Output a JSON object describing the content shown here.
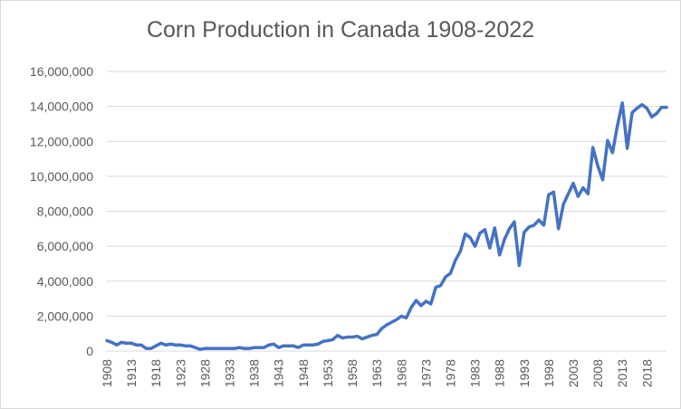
{
  "chart_data": {
    "type": "line",
    "title": "Corn Production in Canada 1908-2022",
    "xlabel": "",
    "ylabel": "",
    "ylim": [
      0,
      16000000
    ],
    "yticks": [
      "0",
      "2,000,000",
      "4,000,000",
      "6,000,000",
      "8,000,000",
      "10,000,000",
      "12,000,000",
      "14,000,000",
      "16,000,000"
    ],
    "xticks": [
      "1908",
      "1913",
      "1918",
      "1923",
      "1928",
      "1933",
      "1938",
      "1943",
      "1948",
      "1953",
      "1958",
      "1963",
      "1968",
      "1973",
      "1978",
      "1983",
      "1988",
      "1993",
      "1998",
      "2003",
      "2008",
      "2013",
      "2018"
    ],
    "grid": true,
    "legend": "none",
    "line_color": "#4472c4",
    "x": [
      1908,
      1909,
      1910,
      1911,
      1912,
      1913,
      1914,
      1915,
      1916,
      1917,
      1918,
      1919,
      1920,
      1921,
      1922,
      1923,
      1924,
      1925,
      1926,
      1927,
      1928,
      1929,
      1930,
      1931,
      1932,
      1933,
      1934,
      1935,
      1936,
      1937,
      1938,
      1939,
      1940,
      1941,
      1942,
      1943,
      1944,
      1945,
      1946,
      1947,
      1948,
      1949,
      1950,
      1951,
      1952,
      1953,
      1954,
      1955,
      1956,
      1957,
      1958,
      1959,
      1960,
      1961,
      1962,
      1963,
      1964,
      1965,
      1966,
      1967,
      1968,
      1969,
      1970,
      1971,
      1972,
      1973,
      1974,
      1975,
      1976,
      1977,
      1978,
      1979,
      1980,
      1981,
      1982,
      1983,
      1984,
      1985,
      1986,
      1987,
      1988,
      1989,
      1990,
      1991,
      1992,
      1993,
      1994,
      1995,
      1996,
      1997,
      1998,
      1999,
      2000,
      2001,
      2002,
      2003,
      2004,
      2005,
      2006,
      2007,
      2008,
      2009,
      2010,
      2011,
      2012,
      2013,
      2014,
      2015,
      2016,
      2017,
      2018,
      2019,
      2020,
      2021,
      2022
    ],
    "series": [
      {
        "values": [
          600000,
          500000,
          350000,
          500000,
          450000,
          450000,
          350000,
          350000,
          150000,
          150000,
          300000,
          450000,
          350000,
          400000,
          350000,
          350000,
          300000,
          300000,
          200000,
          100000,
          150000,
          150000,
          150000,
          150000,
          150000,
          150000,
          150000,
          200000,
          150000,
          150000,
          200000,
          200000,
          200000,
          350000,
          400000,
          200000,
          300000,
          300000,
          300000,
          200000,
          350000,
          350000,
          350000,
          400000,
          550000,
          600000,
          650000,
          900000,
          750000,
          800000,
          800000,
          850000,
          700000,
          800000,
          900000,
          950000,
          1300000,
          1500000,
          1650000,
          1800000,
          2000000,
          1900000,
          2500000,
          2900000,
          2600000,
          2850000,
          2700000,
          3650000,
          3750000,
          4250000,
          4450000,
          5200000,
          5700000,
          6700000,
          6500000,
          6000000,
          6750000,
          6950000,
          5900000,
          7050000,
          5500000,
          6400000,
          7000000,
          7400000,
          4900000,
          6800000,
          7100000,
          7200000,
          7500000,
          7200000,
          8950000,
          9100000,
          7000000,
          8400000,
          9000000,
          9600000,
          8850000,
          9350000,
          9000000,
          11650000,
          10600000,
          9800000,
          12050000,
          11350000,
          12900000,
          14200000,
          11600000,
          13650000,
          13900000,
          14100000,
          13900000,
          13400000,
          13600000,
          13950000,
          13950000
        ]
      }
    ]
  }
}
